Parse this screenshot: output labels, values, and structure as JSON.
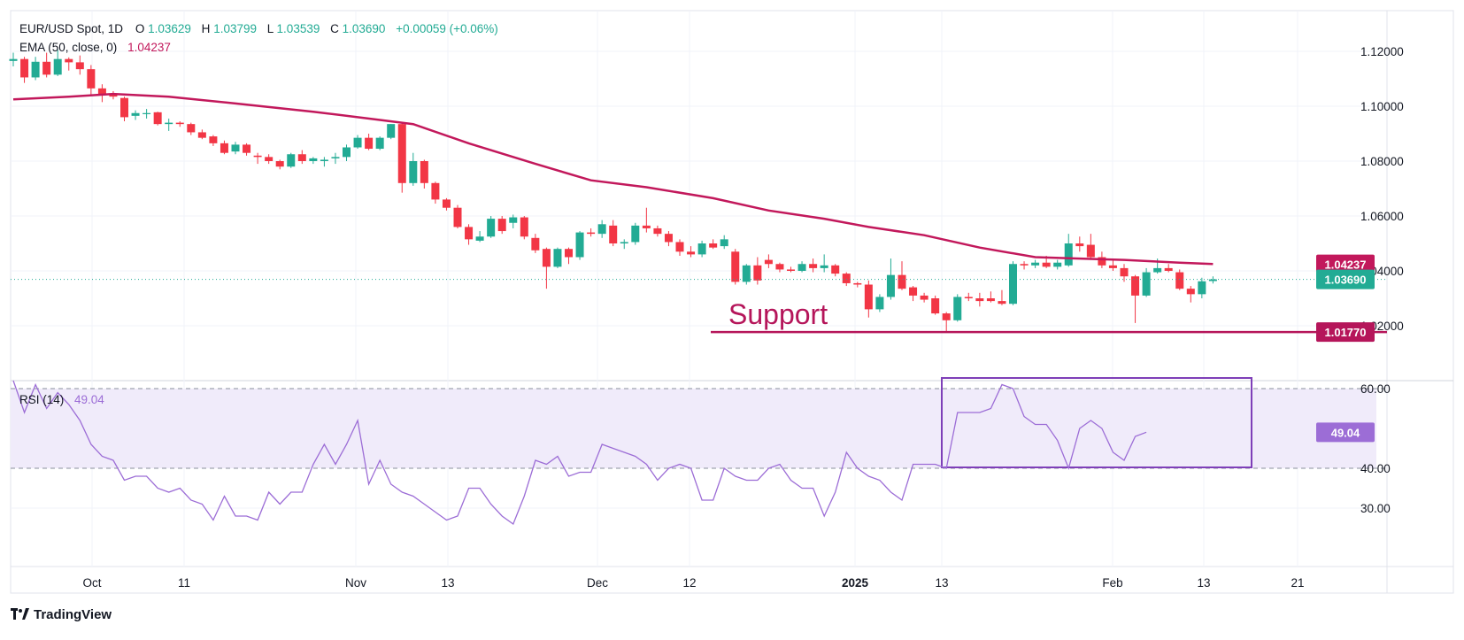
{
  "header": {
    "symbol_line": {
      "symbol": "EUR/USD Spot, 1D",
      "open_label": "O",
      "open": "1.03629",
      "high_label": "H",
      "high": "1.03799",
      "low_label": "L",
      "low": "1.03539",
      "close_label": "C",
      "close": "1.03690",
      "change": "+0.00059 (+0.06%)"
    },
    "ema_line": {
      "label": "EMA (50, close, 0)",
      "value": "1.04237"
    },
    "rsi_line": {
      "label": "RSI (14)",
      "value": "49.04"
    }
  },
  "annotation": {
    "support_text": "Support"
  },
  "price_badges": {
    "ema": "1.04237",
    "close": "1.03690",
    "support": "1.01770"
  },
  "rsi_badge": "49.04",
  "brand": {
    "name": "TradingView"
  },
  "colors": {
    "bull": "#22ab94",
    "bear": "#f23645",
    "ema": "#c2185b",
    "support": "#b5155a",
    "rsi": "#9c6dd6",
    "rsi_band": "#f0ebfa",
    "rsi_box": "#7e3fb8"
  },
  "chart_data": [
    {
      "type": "candlestick",
      "title": "EUR/USD Spot, 1D",
      "y_axis_ticks": [
        "1.12000",
        "1.10000",
        "1.08000",
        "1.06000",
        "1.04000",
        "1.02000"
      ],
      "x_axis_ticks": [
        "Oct",
        "11",
        "Nov",
        "13",
        "Dec",
        "12",
        "2025",
        "13",
        "Feb",
        "13",
        "21"
      ],
      "ylim": [
        1.0125,
        1.1305
      ],
      "candles": [
        [
          1.1165,
          1.1195,
          1.1145,
          1.1172
        ],
        [
          1.1172,
          1.118,
          1.1085,
          1.1105
        ],
        [
          1.1105,
          1.118,
          1.1095,
          1.1162
        ],
        [
          1.1162,
          1.1195,
          1.1105,
          1.1115
        ],
        [
          1.1115,
          1.1205,
          1.111,
          1.1172
        ],
        [
          1.1172,
          1.1178,
          1.113,
          1.116
        ],
        [
          1.116,
          1.1185,
          1.1115,
          1.1135
        ],
        [
          1.1135,
          1.115,
          1.104,
          1.1065
        ],
        [
          1.1065,
          1.108,
          1.1015,
          1.1045
        ],
        [
          1.1045,
          1.1055,
          1.1025,
          1.1035
        ],
        [
          1.103,
          1.1035,
          1.0945,
          1.096
        ],
        [
          1.0965,
          1.0985,
          1.095,
          1.0975
        ],
        [
          1.0975,
          1.099,
          1.0955,
          1.0975
        ],
        [
          1.0978,
          1.098,
          1.093,
          1.0935
        ],
        [
          1.0935,
          1.0955,
          1.091,
          1.094
        ],
        [
          1.094,
          1.0945,
          1.0925,
          1.0935
        ],
        [
          1.0935,
          1.094,
          1.0895,
          1.0905
        ],
        [
          1.0905,
          1.0915,
          1.088,
          1.0885
        ],
        [
          1.089,
          1.0895,
          1.0855,
          1.0865
        ],
        [
          1.0865,
          1.0875,
          1.0825,
          1.083
        ],
        [
          1.0835,
          1.087,
          1.0825,
          1.086
        ],
        [
          1.086,
          1.0865,
          1.082,
          1.083
        ],
        [
          1.082,
          1.083,
          1.079,
          1.0815
        ],
        [
          1.0815,
          1.0825,
          1.079,
          1.08
        ],
        [
          1.08,
          1.0805,
          1.077,
          1.078
        ],
        [
          1.078,
          1.083,
          1.0775,
          1.0825
        ],
        [
          1.0825,
          1.084,
          1.079,
          1.08
        ],
        [
          1.08,
          1.0815,
          1.079,
          1.081
        ],
        [
          1.08,
          1.0815,
          1.078,
          1.0805
        ],
        [
          1.081,
          1.083,
          1.079,
          1.0815
        ],
        [
          1.0815,
          1.086,
          1.08,
          1.085
        ],
        [
          1.085,
          1.0895,
          1.0845,
          1.0885
        ],
        [
          1.0885,
          1.09,
          1.084,
          1.0845
        ],
        [
          1.0845,
          1.089,
          1.084,
          1.0885
        ],
        [
          1.0885,
          1.0935,
          1.088,
          1.0935
        ],
        [
          1.0935,
          1.094,
          1.0685,
          1.072
        ],
        [
          1.072,
          1.083,
          1.071,
          1.08
        ],
        [
          1.08,
          1.0805,
          1.07,
          1.072
        ],
        [
          1.072,
          1.0725,
          1.0645,
          1.066
        ],
        [
          1.066,
          1.0665,
          1.062,
          1.063
        ],
        [
          1.063,
          1.064,
          1.0555,
          1.056
        ],
        [
          1.056,
          1.057,
          1.0495,
          1.0515
        ],
        [
          1.051,
          1.0545,
          1.0505,
          1.0525
        ],
        [
          1.0525,
          1.06,
          1.052,
          1.059
        ],
        [
          1.059,
          1.06,
          1.0535,
          1.0545
        ],
        [
          1.0575,
          1.0605,
          1.0555,
          1.0595
        ],
        [
          1.0595,
          1.06,
          1.0515,
          1.0525
        ],
        [
          1.052,
          1.0535,
          1.0465,
          1.0475
        ],
        [
          1.048,
          1.0485,
          1.0335,
          1.0415
        ],
        [
          1.0415,
          1.0485,
          1.041,
          1.048
        ],
        [
          1.048,
          1.0485,
          1.0425,
          1.045
        ],
        [
          1.045,
          1.0545,
          1.044,
          1.054
        ],
        [
          1.054,
          1.0555,
          1.0525,
          1.0535
        ],
        [
          1.0535,
          1.0585,
          1.052,
          1.057
        ],
        [
          1.0565,
          1.0585,
          1.049,
          1.05
        ],
        [
          1.05,
          1.0515,
          1.048,
          1.0505
        ],
        [
          1.0505,
          1.0575,
          1.0495,
          1.0565
        ],
        [
          1.0565,
          1.063,
          1.054,
          1.0555
        ],
        [
          1.0555,
          1.0565,
          1.0525,
          1.0535
        ],
        [
          1.0535,
          1.0545,
          1.049,
          1.0505
        ],
        [
          1.0505,
          1.0515,
          1.0455,
          1.047
        ],
        [
          1.047,
          1.049,
          1.045,
          1.046
        ],
        [
          1.046,
          1.051,
          1.045,
          1.05
        ],
        [
          1.05,
          1.0515,
          1.048,
          1.0485
        ],
        [
          1.049,
          1.053,
          1.048,
          1.0515
        ],
        [
          1.047,
          1.048,
          1.035,
          1.036
        ],
        [
          1.036,
          1.0425,
          1.035,
          1.042
        ],
        [
          1.042,
          1.045,
          1.035,
          1.0365
        ],
        [
          1.044,
          1.046,
          1.041,
          1.0425
        ],
        [
          1.0425,
          1.043,
          1.0395,
          1.0405
        ],
        [
          1.0405,
          1.0415,
          1.0395,
          1.04
        ],
        [
          1.04,
          1.0435,
          1.0395,
          1.0425
        ],
        [
          1.0425,
          1.0445,
          1.0395,
          1.041
        ],
        [
          1.041,
          1.046,
          1.0395,
          1.042
        ],
        [
          1.042,
          1.0425,
          1.038,
          1.039
        ],
        [
          1.039,
          1.0395,
          1.0345,
          1.0355
        ],
        [
          1.0355,
          1.036,
          1.034,
          1.035
        ],
        [
          1.035,
          1.0365,
          1.023,
          1.026
        ],
        [
          1.026,
          1.0315,
          1.025,
          1.0305
        ],
        [
          1.0305,
          1.0445,
          1.0295,
          1.0385
        ],
        [
          1.0385,
          1.0435,
          1.033,
          1.0335
        ],
        [
          1.034,
          1.0345,
          1.029,
          1.031
        ],
        [
          1.031,
          1.032,
          1.0285,
          1.0295
        ],
        [
          1.03,
          1.031,
          1.024,
          1.0245
        ],
        [
          1.0245,
          1.025,
          1.018,
          1.022
        ],
        [
          1.022,
          1.0315,
          1.0215,
          1.0305
        ],
        [
          1.0305,
          1.032,
          1.029,
          1.03
        ],
        [
          1.03,
          1.032,
          1.027,
          1.029
        ],
        [
          1.03,
          1.0325,
          1.0285,
          1.029
        ],
        [
          1.029,
          1.033,
          1.0275,
          1.028
        ],
        [
          1.028,
          1.0435,
          1.0275,
          1.0425
        ],
        [
          1.0425,
          1.0435,
          1.0405,
          1.042
        ],
        [
          1.042,
          1.044,
          1.041,
          1.043
        ],
        [
          1.043,
          1.0455,
          1.041,
          1.0415
        ],
        [
          1.0415,
          1.044,
          1.0405,
          1.043
        ],
        [
          1.042,
          1.0535,
          1.0415,
          1.05
        ],
        [
          1.05,
          1.0525,
          1.047,
          1.049
        ],
        [
          1.0495,
          1.0535,
          1.044,
          1.045
        ],
        [
          1.045,
          1.047,
          1.041,
          1.042
        ],
        [
          1.042,
          1.0445,
          1.04,
          1.041
        ],
        [
          1.041,
          1.0425,
          1.036,
          1.038
        ],
        [
          1.038,
          1.0385,
          1.021,
          1.031
        ],
        [
          1.031,
          1.041,
          1.0305,
          1.0395
        ],
        [
          1.0395,
          1.0445,
          1.039,
          1.041
        ],
        [
          1.041,
          1.0425,
          1.0395,
          1.04
        ],
        [
          1.0395,
          1.0405,
          1.033,
          1.0335
        ],
        [
          1.0335,
          1.0345,
          1.0285,
          1.0315
        ],
        [
          1.0315,
          1.0375,
          1.03,
          1.0362
        ],
        [
          1.03629,
          1.03799,
          1.03539,
          1.0369
        ]
      ],
      "ema": [
        [
          0,
          1.1025
        ],
        [
          5,
          1.1035
        ],
        [
          9,
          1.1045
        ],
        [
          14,
          1.1035
        ],
        [
          20,
          1.101
        ],
        [
          27,
          1.098
        ],
        [
          33,
          1.095
        ],
        [
          36,
          1.0935
        ],
        [
          41,
          1.0865
        ],
        [
          47,
          1.079
        ],
        [
          52,
          1.073
        ],
        [
          57,
          1.0705
        ],
        [
          63,
          1.0665
        ],
        [
          68,
          1.062
        ],
        [
          73,
          1.059
        ],
        [
          77,
          1.056
        ],
        [
          82,
          1.053
        ],
        [
          87,
          1.0485
        ],
        [
          92,
          1.045
        ],
        [
          96,
          1.0445
        ],
        [
          100,
          1.044
        ],
        [
          105,
          1.043
        ],
        [
          108,
          1.0425
        ]
      ],
      "ema_last": 1.04237,
      "last_close": 1.0369,
      "support_level": 1.0177
    },
    {
      "type": "line",
      "title": "RSI (14)",
      "y_axis_ticks": [
        "60.00",
        "40.00",
        "30.00"
      ],
      "ylim": [
        22,
        70
      ],
      "band": [
        40,
        60
      ],
      "values": [
        62,
        54,
        61,
        55,
        59,
        56,
        52,
        46,
        43,
        42,
        37,
        38,
        38,
        35,
        34,
        35,
        32,
        31,
        27,
        33,
        28,
        28,
        27,
        34,
        31,
        34,
        34,
        41,
        46,
        41,
        46,
        52,
        36,
        42,
        36,
        34,
        33,
        31,
        29,
        27,
        28,
        35,
        35,
        31,
        28,
        26,
        33,
        42,
        41,
        43,
        38,
        39,
        39,
        46,
        45,
        44,
        43,
        41,
        37,
        40,
        41,
        40,
        32,
        32,
        40,
        38,
        37,
        37,
        40,
        41,
        37,
        35,
        35,
        28,
        34,
        44,
        40,
        38,
        37,
        34,
        32,
        41,
        41,
        41,
        40,
        54,
        54,
        54,
        55,
        61,
        60,
        53,
        51,
        51,
        47,
        40,
        50,
        52,
        50,
        44,
        42,
        48,
        49.04
      ]
    }
  ]
}
